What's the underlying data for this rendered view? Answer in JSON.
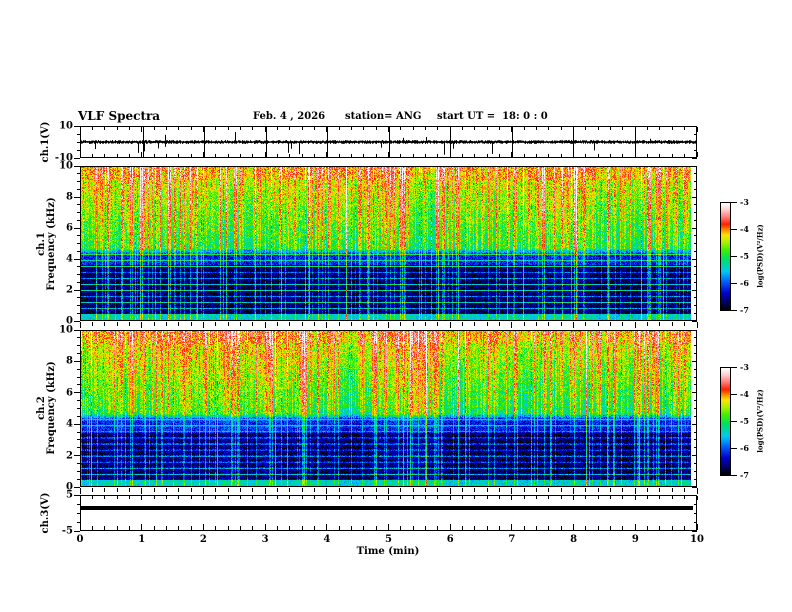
{
  "header": {
    "title": "VLF Spectra",
    "date": "Feb. 4 , 2026",
    "station": "station= ANG",
    "start_ut": "start UT =  18: 0 : 0"
  },
  "time_axis": {
    "label": "Time (min)",
    "min": 0,
    "max": 10,
    "major_ticks": [
      0,
      1,
      2,
      3,
      4,
      5,
      6,
      7,
      8,
      9,
      10
    ],
    "minor_tick_step_min": 0.2
  },
  "panels": {
    "ch1_waveform": {
      "label": "ch.1(V)",
      "ymin": -10,
      "ymax": 10,
      "ytick_values": [
        10,
        -10
      ],
      "ytick_labels": [
        "10",
        "-10"
      ]
    },
    "ch1_spectrogram": {
      "label_channel": "ch.1",
      "label_axis": "Frequency (kHz)",
      "ymin": 0,
      "ymax": 10,
      "yticks": [
        10,
        8,
        6,
        4,
        2,
        0
      ]
    },
    "ch2_spectrogram": {
      "label_channel": "ch.2",
      "label_axis": "Frequency (kHz)",
      "ymin": 0,
      "ymax": 10,
      "yticks": [
        10,
        8,
        6,
        4,
        2,
        0
      ]
    },
    "ch3_waveform": {
      "label": "ch.3(V)",
      "ymin": -5,
      "ymax": 5,
      "ytick_values": [
        5,
        -5
      ],
      "ytick_labels": [
        "5",
        "-5"
      ]
    }
  },
  "colorbar": {
    "label": "log(PSD)(V²/Hz)",
    "tick_labels": [
      "-3",
      "-4",
      "-5",
      "-6",
      "-7"
    ],
    "tick_values": [
      -3,
      -4,
      -5,
      -6,
      -7
    ],
    "vmin": -7,
    "vmax": -3
  },
  "colormap_stops": [
    [
      0.0,
      "#000000"
    ],
    [
      0.06,
      "#000050"
    ],
    [
      0.16,
      "#0000cc"
    ],
    [
      0.27,
      "#0064ff"
    ],
    [
      0.36,
      "#00c8f0"
    ],
    [
      0.48,
      "#00e060"
    ],
    [
      0.56,
      "#40ee00"
    ],
    [
      0.64,
      "#b4f000"
    ],
    [
      0.7,
      "#ffe400"
    ],
    [
      0.75,
      "#ff8c00"
    ],
    [
      0.8,
      "#ff2000"
    ],
    [
      0.87,
      "#ff7e7e"
    ],
    [
      0.94,
      "#ffd2d2"
    ],
    [
      1.0,
      "#ffffff"
    ]
  ],
  "chart_data": [
    {
      "type": "line",
      "panel": "ch.1 waveform",
      "ylabel": "ch.1(V)",
      "x_range_min": [
        0,
        10
      ],
      "y_range_V": [
        -10,
        10
      ],
      "yticks": [
        10,
        -10
      ],
      "grid": "vertical gridlines at every 1 min",
      "description": "Dense noisy trace centered near 0 V (band roughly ±1-2 V) with frequent impulsive sferic spikes, the largest reaching about +7 V and -8 V."
    },
    {
      "type": "heatmap",
      "panel": "ch.1 spectrogram",
      "ylabel": "Frequency (kHz)",
      "x_range_min": [
        0,
        10
      ],
      "y_range_kHz": [
        0,
        10
      ],
      "yticks": [
        10,
        8,
        6,
        4,
        2,
        0
      ],
      "z_label": "log(PSD)(V²/Hz)",
      "z_range": [
        -7,
        -3
      ],
      "description": "Above ~4.5 kHz: bright green/yellow background (PSD ~ -5 to -4.5) packed with vertical sferic streaks, some orange/red streaks reaching ~ -3.5; top 1 kHz slightly hotter. Between ~0.5 and 4.5 kHz: dark navy/black background (~ -6.5 to -7) crossed by narrow horizontal hum lines every ~0.4 kHz (cyan/blue, brighter near 4-4.5 kHz) and occasional green vertical lines from strong sferics. Below ~0.5 kHz: bright green/cyan band (~ -5.3)."
    },
    {
      "type": "heatmap",
      "panel": "ch.2 spectrogram",
      "ylabel": "Frequency (kHz)",
      "x_range_min": [
        0,
        10
      ],
      "y_range_kHz": [
        0,
        10
      ],
      "yticks": [
        10,
        8,
        6,
        4,
        2,
        0
      ],
      "z_label": "log(PSD)(V²/Hz)",
      "z_range": [
        -7,
        -3
      ],
      "description": "Same structure as ch.1 spectrogram: green/yellow sferic-filled band above ~4.5 kHz with red streaks, dark blue banded region below 4.5 kHz with horizontal hum lines, bright band near 0 kHz."
    },
    {
      "type": "line",
      "panel": "ch.3 waveform",
      "ylabel": "ch.3(V)",
      "x_range_min": [
        0,
        10
      ],
      "y_range_V": [
        -5,
        5
      ],
      "yticks": [
        5,
        -5
      ],
      "description": "Constant flat thick line at about +1 V extending from 0 to ~9.85 min."
    }
  ]
}
